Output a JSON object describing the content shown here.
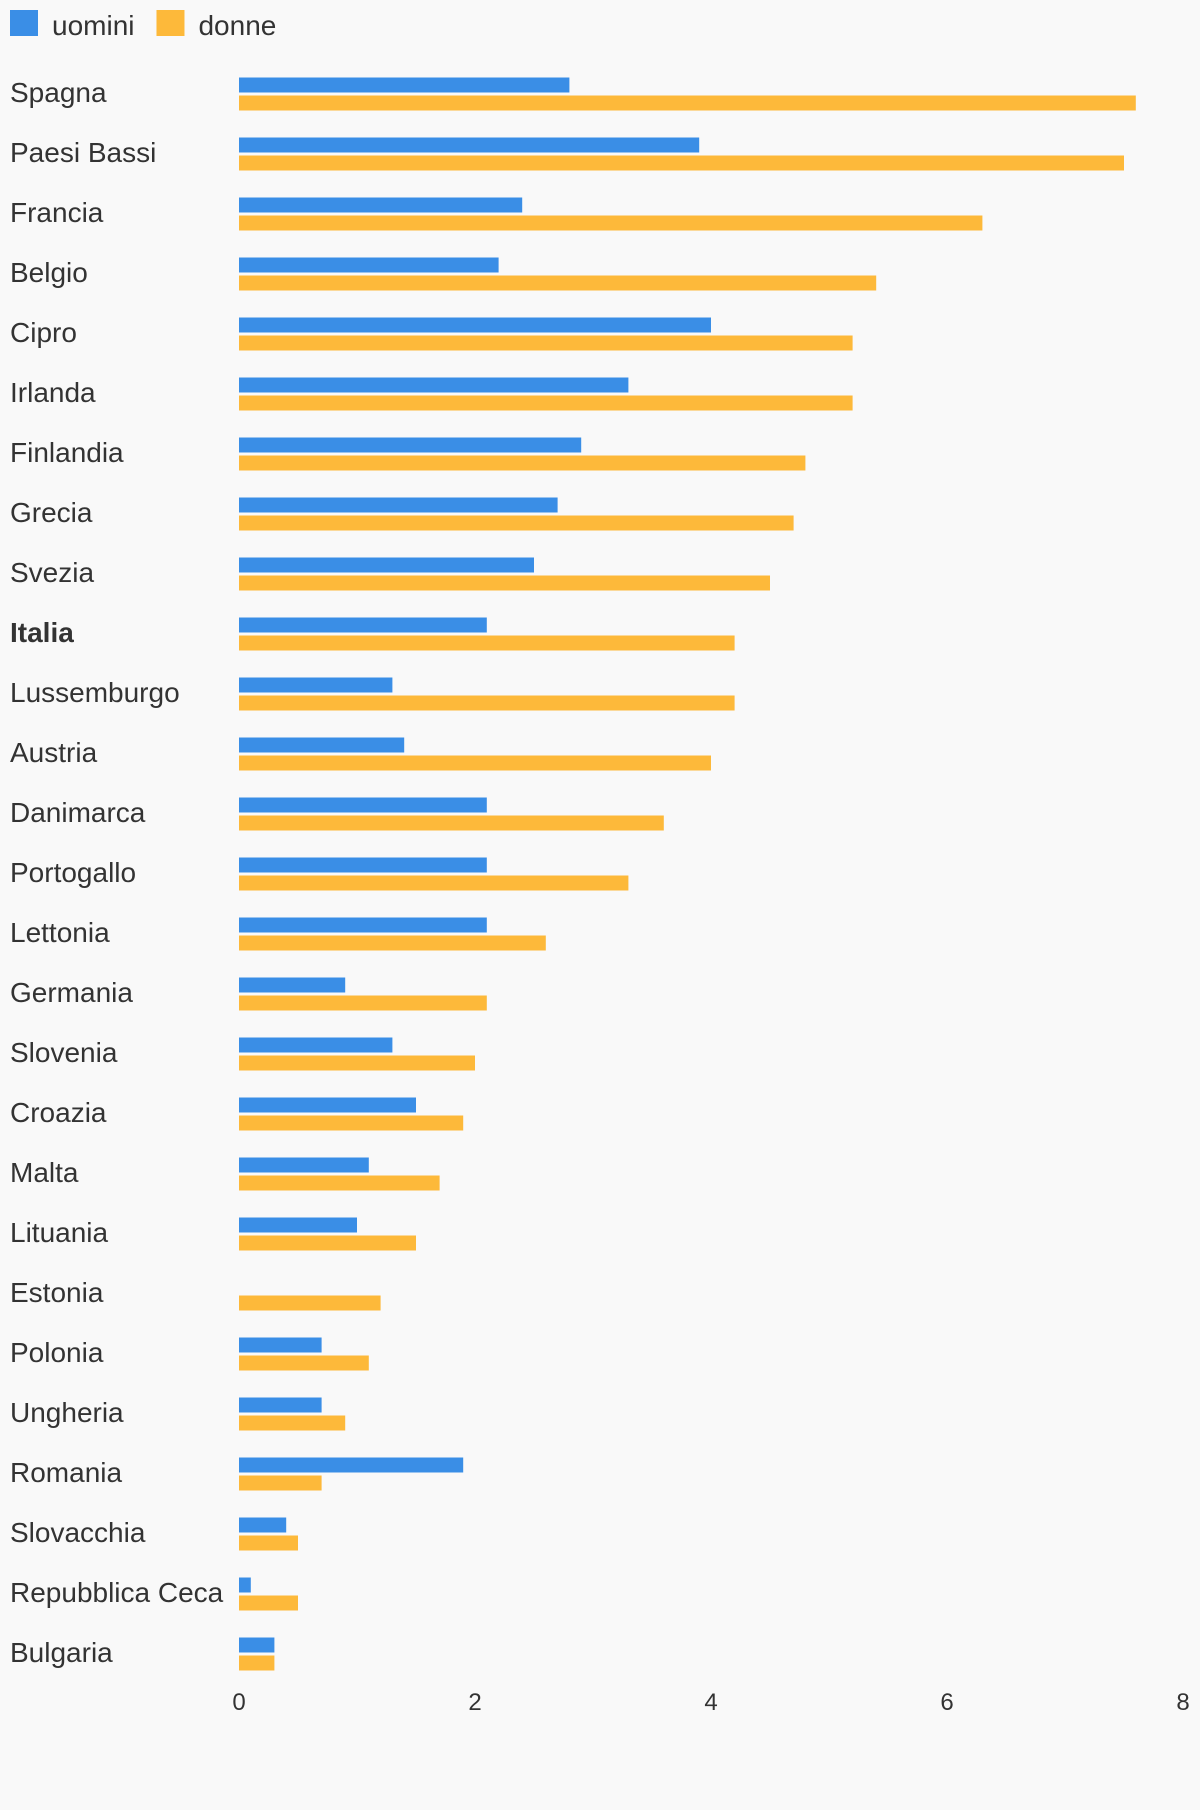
{
  "chart_data": {
    "type": "bar",
    "orientation": "horizontal",
    "legend_position": "top-left",
    "grid": false,
    "xlim": [
      0,
      8
    ],
    "xticks": [
      0,
      2,
      4,
      6,
      8
    ],
    "highlight_category": "Italia",
    "categories": [
      "Spagna",
      "Paesi Bassi",
      "Francia",
      "Belgio",
      "Cipro",
      "Irlanda",
      "Finlandia",
      "Grecia",
      "Svezia",
      "Italia",
      "Lussemburgo",
      "Austria",
      "Danimarca",
      "Portogallo",
      "Lettonia",
      "Germania",
      "Slovenia",
      "Croazia",
      "Malta",
      "Lituania",
      "Estonia",
      "Polonia",
      "Ungheria",
      "Romania",
      "Slovacchia",
      "Repubblica Ceca",
      "Bulgaria"
    ],
    "series": [
      {
        "name": "uomini",
        "color": "#3a8ee6",
        "values": [
          2.8,
          3.9,
          2.4,
          2.2,
          4.0,
          3.3,
          2.9,
          2.7,
          2.5,
          2.1,
          1.3,
          1.4,
          2.1,
          2.1,
          2.1,
          0.9,
          1.3,
          1.5,
          1.1,
          1.0,
          0.0,
          0.7,
          0.7,
          1.9,
          0.4,
          0.1,
          0.3
        ]
      },
      {
        "name": "donne",
        "color": "#fdb93a",
        "values": [
          7.6,
          7.5,
          6.3,
          5.4,
          5.2,
          5.2,
          4.8,
          4.7,
          4.5,
          4.2,
          4.2,
          4.0,
          3.6,
          3.3,
          2.6,
          2.1,
          2.0,
          1.9,
          1.7,
          1.5,
          1.2,
          1.1,
          0.9,
          0.7,
          0.5,
          0.5,
          0.3
        ]
      }
    ]
  }
}
